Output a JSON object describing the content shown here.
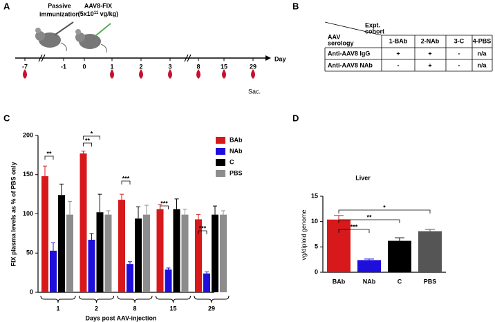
{
  "panel_labels": [
    "A",
    "B",
    "C",
    "D"
  ],
  "timeline": {
    "passive_line1": "Passive",
    "passive_line2": "immunization",
    "vector": "AAV8-FIX",
    "dose": "(5x10",
    "dose_exponent": "11",
    "dose_unit": " vg/kg)",
    "days": [
      "-7",
      "-1",
      "0",
      "1",
      "2",
      "3",
      "8",
      "15",
      "29"
    ],
    "axis_label": "Day",
    "endpoint": "Sac."
  },
  "table": {
    "corner_top": [
      "Expt.",
      "cohort"
    ],
    "corner_bottom": [
      "AAV",
      "serology"
    ],
    "columns": [
      "1-BAb",
      "2-NAb",
      "3-C",
      "4-PBS"
    ],
    "rows": [
      [
        "Anti-AAV8 IgG",
        "+",
        "+",
        "-",
        "n/a"
      ],
      [
        "Anti-AAV8 NAb",
        "-",
        "+",
        "-",
        "n/a"
      ]
    ]
  },
  "chart_data": [
    {
      "type": "bar",
      "ylabel": "FIX plasma levels as % of PBS only",
      "xlabel": "Days post AAV-injection",
      "categories": [
        "1",
        "2",
        "8",
        "15",
        "29"
      ],
      "series": [
        {
          "name": "BAb",
          "color": "#d7191c",
          "values": [
            148,
            177,
            118,
            106,
            93
          ],
          "errors": [
            13,
            3,
            7,
            6,
            6
          ]
        },
        {
          "name": "NAb",
          "color": "#1f0fdc",
          "values": [
            53,
            67,
            36,
            29,
            24
          ],
          "errors": [
            10,
            8,
            3,
            2,
            2
          ]
        },
        {
          "name": "C",
          "color": "#000000",
          "values": [
            124,
            102,
            94,
            106,
            99
          ],
          "errors": [
            14,
            23,
            15,
            13,
            11
          ]
        },
        {
          "name": "PBS",
          "color": "#8c8c8c",
          "values": [
            99,
            99,
            99,
            99,
            99
          ],
          "errors": [
            17,
            5,
            12,
            7,
            5
          ]
        }
      ],
      "ylim": [
        0,
        200
      ],
      "yticks": [
        0,
        50,
        100,
        150,
        200
      ],
      "annotations": [
        "**",
        "**",
        "*",
        "***",
        "***",
        "***"
      ]
    },
    {
      "type": "bar",
      "title": "Liver",
      "ylabel": "vg/diploid genome",
      "categories": [
        "BAb",
        "NAb",
        "C",
        "PBS"
      ],
      "values": [
        10.4,
        2.4,
        6.2,
        8.1
      ],
      "errors": [
        0.8,
        0.2,
        0.6,
        0.35
      ],
      "colors": [
        "#d7191c",
        "#1f0fdc",
        "#000000",
        "#555555"
      ],
      "ylim": [
        0,
        15
      ],
      "yticks": [
        0,
        5,
        10,
        15
      ],
      "annotations": [
        "***",
        "**",
        "*"
      ]
    }
  ]
}
